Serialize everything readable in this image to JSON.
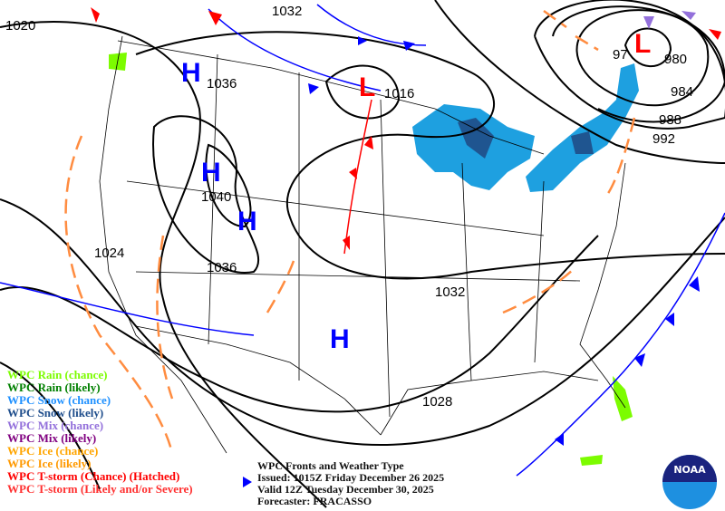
{
  "title_block": {
    "title": "WPC Fronts and Weather Type",
    "issued": "Issued: 1015Z Friday December 26 2025",
    "valid": "Valid 12Z Tuesday December 30, 2025",
    "forecaster": "Forecaster: FRACASSO"
  },
  "legend": [
    {
      "label": "WPC Rain (chance)",
      "color": "#7cfc00"
    },
    {
      "label": "WPC Rain (likely)",
      "color": "#008000"
    },
    {
      "label": "WPC Snow (chance)",
      "color": "#1e90ff"
    },
    {
      "label": "WPC Snow (likely)",
      "color": "#1f4e8c"
    },
    {
      "label": "WPC Mix (chance)",
      "color": "#9370db"
    },
    {
      "label": "WPC Mix (likely)",
      "color": "#800080"
    },
    {
      "label": "WPC Ice (chance)",
      "color": "#ffa500"
    },
    {
      "label": "WPC Ice (likely)",
      "color": "#ff9900"
    },
    {
      "label": "WPC T-storm (Chance) (Hatched)",
      "color": "#ff0000"
    },
    {
      "label": "WPC T-storm (Likely and/or Severe)",
      "color": "#ff3030"
    }
  ],
  "isobar_labels": [
    "1020",
    "1032",
    "1036",
    "1016",
    "1040",
    "1024",
    "1036",
    "1032",
    "1028",
    "97",
    "980",
    "984",
    "988",
    "992"
  ],
  "pressure_centers": [
    {
      "type": "H",
      "color": "#0000ff"
    },
    {
      "type": "H",
      "color": "#0000ff"
    },
    {
      "type": "H",
      "color": "#0000ff"
    },
    {
      "type": "H",
      "color": "#0000ff"
    },
    {
      "type": "L",
      "color": "#ff0000"
    },
    {
      "type": "L",
      "color": "#ff0000"
    }
  ],
  "logo": {
    "text": "NOAA"
  },
  "colors": {
    "cold_front": "#0000ff",
    "warm_front": "#ff0000",
    "trough": "#ff8c40",
    "isobar": "#000000"
  }
}
